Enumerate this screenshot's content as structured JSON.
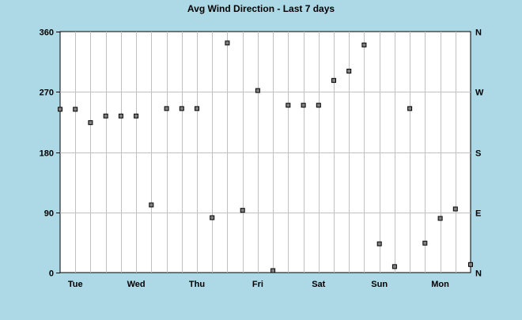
{
  "chart_data": {
    "type": "scatter",
    "title": "Avg Wind Direction - Last 7 days",
    "xlabel": "",
    "ylabel": "",
    "x_tick_labels": [
      "Tue",
      "Wed",
      "Thu",
      "Fri",
      "Sat",
      "Sun",
      "Mon"
    ],
    "y_ticks_left": [
      0,
      90,
      180,
      270,
      360
    ],
    "y_ticks_right": [
      "N",
      "E",
      "S",
      "W",
      "N"
    ],
    "ylim": [
      0,
      360
    ],
    "grid": true,
    "series": [
      {
        "values": [
          244,
          244,
          224,
          234,
          234,
          234,
          101,
          245,
          245,
          245,
          82,
          343,
          93,
          272,
          3,
          250,
          250,
          250,
          287,
          301,
          340,
          43,
          9,
          245,
          44,
          81,
          95,
          12
        ]
      }
    ],
    "colors": {
      "background": "#add8e6",
      "plot_area": "#ffffff",
      "grid": "#c0c0c0",
      "marker": "#000000"
    }
  }
}
